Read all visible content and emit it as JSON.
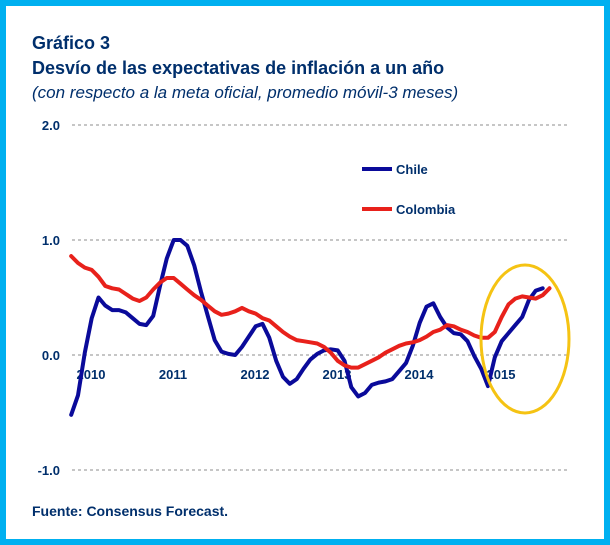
{
  "header": {
    "label": "Gráfico 3",
    "title": "Desvío de las expectativas de inflación  a un año",
    "subtitle": "(con respecto a la meta oficial, promedio móvil-3 meses)"
  },
  "footer": {
    "source": "Fuente: Consensus Forecast."
  },
  "colors": {
    "frame": "#00b0f0",
    "text": "#002f6c",
    "chile": "#0a0a9a",
    "colombia": "#e8211b",
    "highlight": "#f5c313"
  },
  "chart_data": {
    "type": "line",
    "title": "Desvío de las expectativas de inflación  a un año",
    "subtitle": "(con respecto a la meta oficial, promedio móvil-3 meses)",
    "xlabel": "",
    "ylabel": "",
    "xlim": [
      2010.0,
      2016.0
    ],
    "ylim": [
      -1.0,
      2.0
    ],
    "yticks": [
      -1.0,
      0.0,
      1.0,
      2.0
    ],
    "ytick_labels": [
      "-1.0",
      "0.0",
      "1.0",
      "2.0"
    ],
    "xticks": [
      2010,
      2011,
      2012,
      2013,
      2014,
      2015
    ],
    "xtick_labels": [
      "2010",
      "2011",
      "2012",
      "2013",
      "2014",
      "2015"
    ],
    "grid": "horizontal dashed",
    "legend": "upper right",
    "series": [
      {
        "name": "Chile",
        "color": "#0a0a9a",
        "x": [
          2009.917,
          2010.0,
          2010.083,
          2010.167,
          2010.25,
          2010.333,
          2010.417,
          2010.5,
          2010.583,
          2010.667,
          2010.75,
          2010.833,
          2010.917,
          2011.0,
          2011.083,
          2011.167,
          2011.25,
          2011.333,
          2011.417,
          2011.5,
          2011.583,
          2011.667,
          2011.75,
          2011.833,
          2011.917,
          2012.0,
          2012.083,
          2012.167,
          2012.25,
          2012.333,
          2012.417,
          2012.5,
          2012.583,
          2012.667,
          2012.75,
          2012.833,
          2012.917,
          2013.0,
          2013.083,
          2013.167,
          2013.25,
          2013.333,
          2013.417,
          2013.5,
          2013.583,
          2013.667,
          2013.75,
          2013.833,
          2013.917,
          2014.0,
          2014.083,
          2014.167,
          2014.25,
          2014.333,
          2014.417,
          2014.5,
          2014.583,
          2014.667,
          2014.75,
          2014.833,
          2014.917,
          2015.0,
          2015.083,
          2015.167,
          2015.25,
          2015.333,
          2015.417,
          2015.5,
          2015.583,
          2015.667
        ],
        "values": [
          -0.52,
          -0.35,
          0.02,
          0.32,
          0.5,
          0.43,
          0.39,
          0.39,
          0.37,
          0.32,
          0.27,
          0.26,
          0.34,
          0.6,
          0.84,
          1.0,
          1.0,
          0.95,
          0.78,
          0.55,
          0.34,
          0.13,
          0.03,
          0.01,
          0.0,
          0.07,
          0.16,
          0.25,
          0.27,
          0.15,
          -0.05,
          -0.19,
          -0.25,
          -0.21,
          -0.12,
          -0.04,
          0.01,
          0.04,
          0.05,
          0.04,
          -0.05,
          -0.28,
          -0.36,
          -0.33,
          -0.26,
          -0.24,
          -0.23,
          -0.21,
          -0.14,
          -0.07,
          0.08,
          0.28,
          0.42,
          0.45,
          0.33,
          0.24,
          0.19,
          0.18,
          0.12,
          -0.01,
          -0.12,
          -0.27,
          -0.02,
          0.12,
          0.19,
          0.26,
          0.33,
          0.48,
          0.56,
          0.58
        ]
      },
      {
        "name": "Colombia",
        "color": "#e8211b",
        "x": [
          2009.917,
          2010.0,
          2010.083,
          2010.167,
          2010.25,
          2010.333,
          2010.417,
          2010.5,
          2010.583,
          2010.667,
          2010.75,
          2010.833,
          2010.917,
          2011.0,
          2011.083,
          2011.167,
          2011.25,
          2011.333,
          2011.417,
          2011.5,
          2011.583,
          2011.667,
          2011.75,
          2011.833,
          2011.917,
          2012.0,
          2012.083,
          2012.167,
          2012.25,
          2012.333,
          2012.417,
          2012.5,
          2012.583,
          2012.667,
          2012.75,
          2012.833,
          2012.917,
          2013.0,
          2013.083,
          2013.167,
          2013.25,
          2013.333,
          2013.417,
          2013.5,
          2013.583,
          2013.667,
          2013.75,
          2013.833,
          2013.917,
          2014.0,
          2014.083,
          2014.167,
          2014.25,
          2014.333,
          2014.417,
          2014.5,
          2014.583,
          2014.667,
          2014.75,
          2014.833,
          2014.917,
          2015.0,
          2015.083,
          2015.167,
          2015.25,
          2015.333,
          2015.417,
          2015.5,
          2015.583,
          2015.667,
          2015.75
        ],
        "values": [
          0.86,
          0.8,
          0.76,
          0.74,
          0.68,
          0.6,
          0.58,
          0.57,
          0.53,
          0.49,
          0.47,
          0.5,
          0.57,
          0.63,
          0.67,
          0.67,
          0.62,
          0.57,
          0.52,
          0.48,
          0.43,
          0.38,
          0.35,
          0.36,
          0.38,
          0.41,
          0.38,
          0.36,
          0.32,
          0.3,
          0.25,
          0.2,
          0.16,
          0.13,
          0.12,
          0.11,
          0.1,
          0.07,
          0.02,
          -0.05,
          -0.09,
          -0.11,
          -0.11,
          -0.08,
          -0.05,
          -0.02,
          0.02,
          0.05,
          0.08,
          0.1,
          0.11,
          0.13,
          0.16,
          0.2,
          0.22,
          0.26,
          0.25,
          0.22,
          0.2,
          0.17,
          0.15,
          0.15,
          0.2,
          0.33,
          0.44,
          0.49,
          0.51,
          0.5,
          0.49,
          0.52,
          0.58
        ]
      }
    ]
  }
}
